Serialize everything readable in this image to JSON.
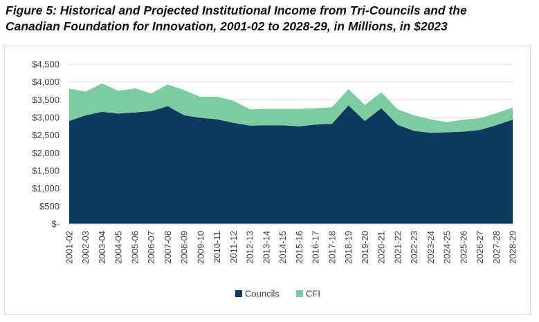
{
  "figure": {
    "title_line1": "Figure 5: Historical and Projected Institutional Income from Tri-Councils and the",
    "title_line2": "Canadian Foundation for Innovation, 2001-02 to 2028-29, in Millions, in $2023"
  },
  "chart_data": {
    "type": "area",
    "stacked": true,
    "title": "Figure 5: Historical and Projected Institutional Income from Tri-Councils and the Canadian Foundation for Innovation, 2001-02 to 2028-29, in Millions, in $2023",
    "xlabel": "",
    "ylabel": "",
    "ylim": [
      0,
      4500
    ],
    "yticks": [
      0,
      500,
      1000,
      1500,
      2000,
      2500,
      3000,
      3500,
      4000,
      4500
    ],
    "ytick_labels": [
      "$-",
      "$500",
      "$1,000",
      "$1,500",
      "$2,000",
      "$2,500",
      "$3,000",
      "$3,500",
      "$4,000",
      "$4,500"
    ],
    "grid": true,
    "legend_position": "bottom",
    "categories": [
      "2001-02",
      "2002-03",
      "2003-04",
      "2004-05",
      "2005-06",
      "2006-07",
      "2007-08",
      "2008-09",
      "2009-10",
      "2010-11",
      "2011-12",
      "2012-13",
      "2013-14",
      "2014-15",
      "2015-16",
      "2016-17",
      "2017-18",
      "2018-19",
      "2019-20",
      "2020-21",
      "2021-22",
      "2022-23",
      "2023-24",
      "2024-25",
      "2025-26",
      "2026-27",
      "2027-28",
      "2028-29"
    ],
    "series": [
      {
        "name": "Councils",
        "color": "#0b3a5c",
        "values": [
          2900,
          3060,
          3160,
          3110,
          3140,
          3180,
          3320,
          3060,
          2990,
          2950,
          2850,
          2770,
          2780,
          2780,
          2750,
          2800,
          2820,
          3340,
          2900,
          3260,
          2790,
          2620,
          2570,
          2580,
          2600,
          2650,
          2780,
          2940
        ]
      },
      {
        "name": "CFI",
        "color": "#7ecba1",
        "values": [
          910,
          670,
          800,
          640,
          680,
          500,
          610,
          710,
          590,
          640,
          620,
          460,
          460,
          460,
          490,
          460,
          470,
          460,
          450,
          450,
          440,
          440,
          380,
          290,
          340,
          330,
          340,
          340
        ]
      }
    ]
  }
}
